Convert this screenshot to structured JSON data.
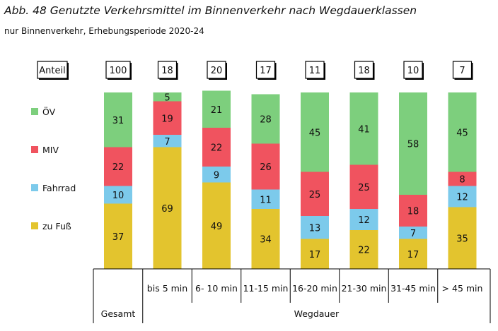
{
  "title": "Abb. 48  Genutzte Verkehrsmittel im Binnenverkehr nach Wegdauerklassen",
  "subtitle": "nur Binnenverkehr, Erhebungsperiode 2020-24",
  "chart_data": {
    "type": "bar",
    "stacked": true,
    "share_header_label": "Anteil",
    "categories": [
      "Gesamt",
      "bis 5 min",
      "6- 10 min",
      "11-15 min",
      "16-20 min",
      "21-30 min",
      "31-45 min",
      "> 45 min"
    ],
    "shares": [
      100,
      18,
      20,
      17,
      11,
      18,
      10,
      7
    ],
    "group_labels": [
      "Gesamt",
      "Wegdauer"
    ],
    "series": [
      {
        "name": "zu Fuß",
        "color": "#e3c42e",
        "values": [
          37,
          69,
          49,
          34,
          17,
          22,
          17,
          35
        ]
      },
      {
        "name": "Fahrrad",
        "color": "#7ccaeb",
        "values": [
          10,
          7,
          9,
          11,
          13,
          12,
          7,
          12
        ]
      },
      {
        "name": "MIV",
        "color": "#f0535f",
        "values": [
          22,
          19,
          22,
          26,
          25,
          25,
          18,
          8
        ]
      },
      {
        "name": "ÖV",
        "color": "#7dcf7d",
        "values": [
          31,
          5,
          21,
          28,
          45,
          41,
          58,
          45
        ]
      }
    ],
    "legend_order": [
      "ÖV",
      "MIV",
      "Fahrrad",
      "zu Fuß"
    ],
    "ylim": [
      0,
      100
    ],
    "xlabel": "",
    "ylabel": ""
  }
}
